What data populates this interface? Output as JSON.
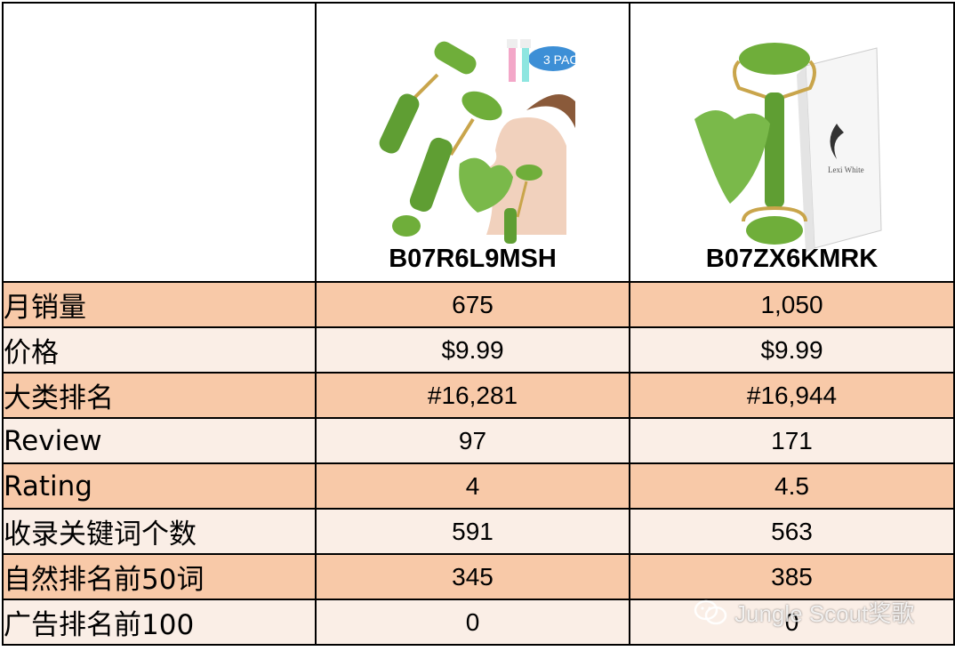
{
  "products": [
    {
      "asin": "B07R6L9MSH"
    },
    {
      "asin": "B07ZX6KMRK"
    }
  ],
  "rows": [
    {
      "label": "月销量",
      "values": [
        "675",
        "1,050"
      ]
    },
    {
      "label": "价格",
      "values": [
        "$9.99",
        "$9.99"
      ]
    },
    {
      "label": "大类排名",
      "values": [
        "#16,281",
        "#16,944"
      ]
    },
    {
      "label": "Review",
      "values": [
        "97",
        "171"
      ]
    },
    {
      "label": "Rating",
      "values": [
        "4",
        "4.5"
      ]
    },
    {
      "label": "收录关键词个数",
      "values": [
        "591",
        "563"
      ]
    },
    {
      "label": "自然排名前50词",
      "values": [
        "345",
        "385"
      ]
    },
    {
      "label": "广告排名前100",
      "values": [
        "0",
        "0"
      ]
    }
  ],
  "watermark": {
    "text": "Jungle Scout奖歌",
    "icon": "wechat-icon"
  },
  "colors": {
    "odd_row": "#f8c9a8",
    "even_row": "#faeee6",
    "jade": "#6fae3a"
  }
}
